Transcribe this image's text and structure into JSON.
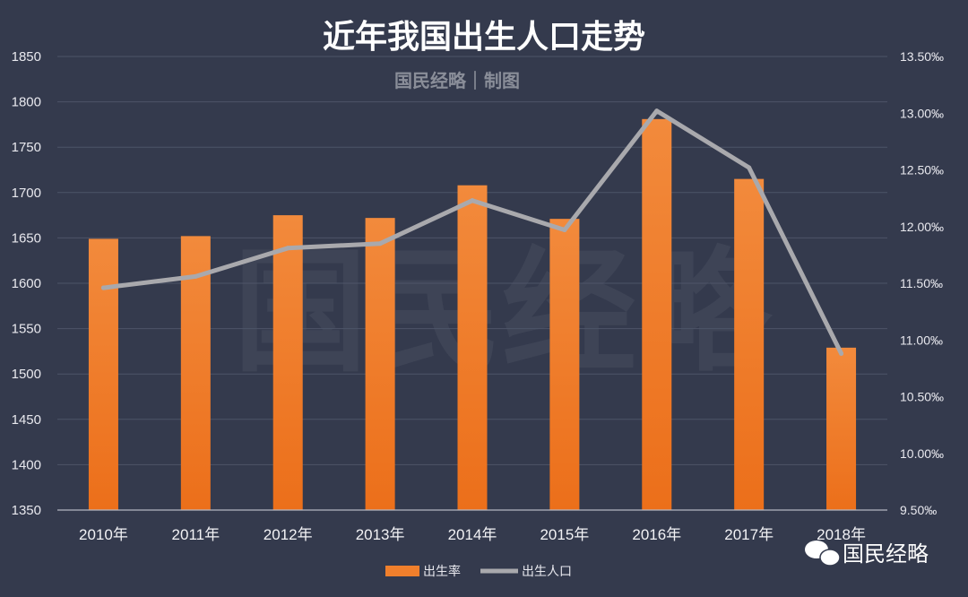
{
  "chart_data": {
    "type": "bar",
    "title": "近年我国出生人口走势",
    "subtitle": "国民经略｜制图",
    "watermark": "国民经略",
    "brand": "国民经略",
    "categories": [
      "2010年",
      "2011年",
      "2012年",
      "2013年",
      "2014年",
      "2015年",
      "2016年",
      "2017年",
      "2018年"
    ],
    "series": [
      {
        "name": "出生率",
        "type": "bar",
        "axis": "left",
        "color": "#f07f2c",
        "values": [
          1649,
          1652,
          1675,
          1672,
          1708,
          1671,
          1781,
          1715,
          1529
        ]
      },
      {
        "name": "出生人口",
        "type": "line",
        "axis": "right",
        "color": "#a9a9ad",
        "values": [
          11.46,
          11.56,
          11.81,
          11.85,
          12.23,
          11.97,
          13.02,
          12.52,
          10.88
        ]
      }
    ],
    "y_left": {
      "min": 1350,
      "max": 1850,
      "step": 50,
      "ticks": [
        "1350",
        "1400",
        "1450",
        "1500",
        "1550",
        "1600",
        "1650",
        "1700",
        "1750",
        "1800",
        "1850"
      ]
    },
    "y_right": {
      "min": 9.5,
      "max": 13.5,
      "step": 0.5,
      "ticks": [
        "9.50‰",
        "10.00‰",
        "10.50‰",
        "11.00‰",
        "11.50‰",
        "12.00‰",
        "12.50‰",
        "13.00‰",
        "13.50‰"
      ]
    },
    "grid": true,
    "legend_position": "bottom"
  }
}
